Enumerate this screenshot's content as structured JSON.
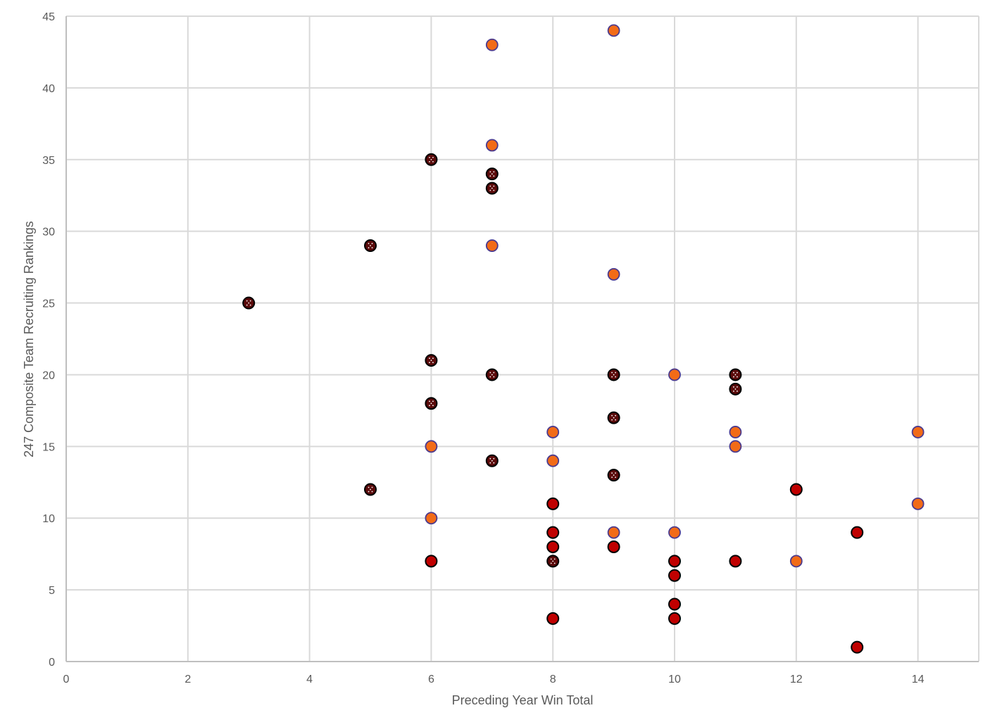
{
  "chart_data": {
    "type": "scatter",
    "title": "",
    "xlabel": "Preceding Year Win Total",
    "ylabel": "247 Composite Team Recruiting Rankings",
    "xlim": [
      0,
      15
    ],
    "ylim": [
      0,
      45
    ],
    "x_ticks": [
      0,
      2,
      4,
      6,
      8,
      10,
      12,
      14
    ],
    "y_ticks": [
      0,
      5,
      10,
      15,
      20,
      25,
      30,
      35,
      40,
      45
    ],
    "grid": true,
    "legend": "none",
    "series": [
      {
        "style": "dark-maroon-dotted",
        "color": "#5b0a0a",
        "points": [
          {
            "x": 3,
            "y": 25
          },
          {
            "x": 5,
            "y": 29
          },
          {
            "x": 5,
            "y": 12
          },
          {
            "x": 6,
            "y": 35
          },
          {
            "x": 6,
            "y": 21
          },
          {
            "x": 6,
            "y": 18
          },
          {
            "x": 7,
            "y": 34
          },
          {
            "x": 7,
            "y": 33
          },
          {
            "x": 7,
            "y": 20
          },
          {
            "x": 7,
            "y": 14
          },
          {
            "x": 8,
            "y": 7
          },
          {
            "x": 9,
            "y": 20
          },
          {
            "x": 9,
            "y": 17
          },
          {
            "x": 9,
            "y": 13
          },
          {
            "x": 11,
            "y": 20
          },
          {
            "x": 11,
            "y": 19
          }
        ]
      },
      {
        "style": "orange",
        "color": "#f26b17",
        "points": [
          {
            "x": 6,
            "y": 15
          },
          {
            "x": 6,
            "y": 10
          },
          {
            "x": 7,
            "y": 43
          },
          {
            "x": 7,
            "y": 36
          },
          {
            "x": 7,
            "y": 29
          },
          {
            "x": 8,
            "y": 16
          },
          {
            "x": 8,
            "y": 14
          },
          {
            "x": 9,
            "y": 44
          },
          {
            "x": 9,
            "y": 27
          },
          {
            "x": 9,
            "y": 9
          },
          {
            "x": 10,
            "y": 20
          },
          {
            "x": 10,
            "y": 9
          },
          {
            "x": 11,
            "y": 16
          },
          {
            "x": 11,
            "y": 15
          },
          {
            "x": 12,
            "y": 7
          },
          {
            "x": 14,
            "y": 16
          },
          {
            "x": 14,
            "y": 11
          }
        ]
      },
      {
        "style": "red",
        "color": "#c00000",
        "points": [
          {
            "x": 6,
            "y": 7
          },
          {
            "x": 8,
            "y": 11
          },
          {
            "x": 8,
            "y": 9
          },
          {
            "x": 8,
            "y": 8
          },
          {
            "x": 8,
            "y": 3
          },
          {
            "x": 9,
            "y": 8
          },
          {
            "x": 10,
            "y": 7
          },
          {
            "x": 10,
            "y": 6
          },
          {
            "x": 10,
            "y": 4
          },
          {
            "x": 10,
            "y": 3
          },
          {
            "x": 11,
            "y": 7
          },
          {
            "x": 12,
            "y": 12
          },
          {
            "x": 13,
            "y": 9
          },
          {
            "x": 13,
            "y": 1
          }
        ]
      }
    ]
  }
}
